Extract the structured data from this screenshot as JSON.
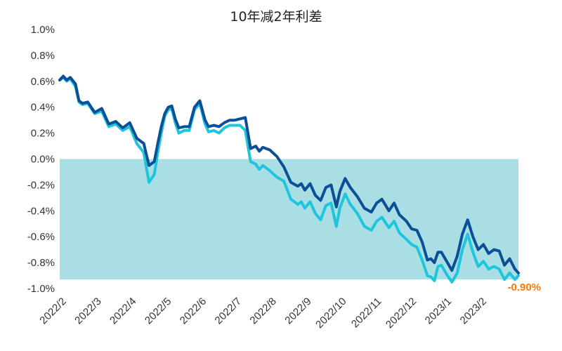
{
  "colors": {
    "series_10y_2y": "#0b4f97",
    "series_light": "#1fc5dc",
    "negative_band": "#a9dfe4",
    "end_label": "#ff7a00"
  },
  "chart_data": {
    "type": "line",
    "title": "10年减2年利差",
    "xlabel": "",
    "ylabel": "",
    "ylim": [
      -1.0,
      1.0
    ],
    "yticks": [
      "1.0%",
      "0.8%",
      "0.6%",
      "0.4%",
      "0.2%",
      "0.0%",
      "-0.2%",
      "-0.4%",
      "-0.6%",
      "-0.8%",
      "-1.0%"
    ],
    "ytick_values": [
      1.0,
      0.8,
      0.6,
      0.4,
      0.2,
      0.0,
      -0.2,
      -0.4,
      -0.6,
      -0.8,
      -1.0
    ],
    "xticks": [
      "2022/2",
      "2022/3",
      "2022/4",
      "2022/5",
      "2022/6",
      "2022/7",
      "2022/8",
      "2022/9",
      "2022/10",
      "2022/11",
      "2022/12",
      "2023/1",
      "2023/2"
    ],
    "x_range": [
      0,
      13.1
    ],
    "grid": false,
    "negative_shading": true,
    "end_label": "-0.90%",
    "series": [
      {
        "color": "#0b4f97",
        "x": [
          0.0,
          0.1,
          0.2,
          0.3,
          0.45,
          0.55,
          0.65,
          0.8,
          1.0,
          1.2,
          1.4,
          1.6,
          1.8,
          2.0,
          2.2,
          2.4,
          2.55,
          2.7,
          2.8,
          2.9,
          3.0,
          3.1,
          3.2,
          3.3,
          3.4,
          3.55,
          3.7,
          3.85,
          4.0,
          4.15,
          4.25,
          4.4,
          4.55,
          4.7,
          4.85,
          5.0,
          5.15,
          5.3,
          5.45,
          5.6,
          5.7,
          5.8,
          5.9,
          6.0,
          6.2,
          6.4,
          6.6,
          6.8,
          6.9,
          7.0,
          7.15,
          7.3,
          7.45,
          7.6,
          7.75,
          7.9,
          8.0,
          8.15,
          8.3,
          8.5,
          8.7,
          8.9,
          9.05,
          9.2,
          9.4,
          9.55,
          9.7,
          9.9,
          10.05,
          10.2,
          10.35,
          10.5,
          10.6,
          10.7,
          10.8,
          10.9,
          11.05,
          11.2,
          11.35,
          11.5,
          11.65,
          11.8,
          11.95,
          12.1,
          12.25,
          12.4,
          12.55,
          12.7,
          12.85,
          13.0,
          13.1
        ],
        "values": [
          0.61,
          0.64,
          0.61,
          0.63,
          0.58,
          0.45,
          0.43,
          0.44,
          0.36,
          0.39,
          0.27,
          0.29,
          0.24,
          0.28,
          0.16,
          0.12,
          -0.05,
          -0.02,
          0.12,
          0.25,
          0.35,
          0.4,
          0.41,
          0.31,
          0.24,
          0.25,
          0.25,
          0.4,
          0.45,
          0.3,
          0.25,
          0.26,
          0.25,
          0.28,
          0.3,
          0.3,
          0.31,
          0.32,
          0.08,
          0.1,
          0.06,
          0.09,
          0.08,
          0.07,
          0.02,
          -0.06,
          -0.18,
          -0.21,
          -0.19,
          -0.24,
          -0.19,
          -0.28,
          -0.32,
          -0.22,
          -0.2,
          -0.37,
          -0.25,
          -0.15,
          -0.22,
          -0.29,
          -0.38,
          -0.41,
          -0.34,
          -0.31,
          -0.4,
          -0.34,
          -0.43,
          -0.48,
          -0.54,
          -0.55,
          -0.64,
          -0.78,
          -0.77,
          -0.8,
          -0.72,
          -0.72,
          -0.79,
          -0.86,
          -0.75,
          -0.58,
          -0.47,
          -0.6,
          -0.7,
          -0.66,
          -0.73,
          -0.7,
          -0.71,
          -0.82,
          -0.77,
          -0.85,
          -0.88
        ]
      },
      {
        "color": "#1fc5dc",
        "x": [
          0.0,
          0.1,
          0.2,
          0.3,
          0.45,
          0.55,
          0.65,
          0.8,
          1.0,
          1.2,
          1.4,
          1.6,
          1.8,
          2.0,
          2.2,
          2.4,
          2.55,
          2.7,
          2.8,
          2.9,
          3.0,
          3.1,
          3.2,
          3.3,
          3.4,
          3.55,
          3.7,
          3.85,
          4.0,
          4.15,
          4.25,
          4.4,
          4.55,
          4.7,
          4.85,
          5.0,
          5.15,
          5.3,
          5.45,
          5.6,
          5.7,
          5.8,
          5.9,
          6.0,
          6.2,
          6.4,
          6.6,
          6.8,
          6.9,
          7.0,
          7.15,
          7.3,
          7.45,
          7.6,
          7.75,
          7.9,
          8.0,
          8.15,
          8.3,
          8.5,
          8.7,
          8.9,
          9.05,
          9.2,
          9.4,
          9.55,
          9.7,
          9.9,
          10.05,
          10.2,
          10.35,
          10.5,
          10.6,
          10.7,
          10.8,
          10.9,
          11.05,
          11.2,
          11.35,
          11.5,
          11.65,
          11.8,
          11.95,
          12.1,
          12.25,
          12.4,
          12.55,
          12.7,
          12.85,
          13.0,
          13.1
        ],
        "values": [
          0.61,
          0.63,
          0.6,
          0.62,
          0.56,
          0.44,
          0.42,
          0.43,
          0.35,
          0.37,
          0.25,
          0.27,
          0.22,
          0.25,
          0.12,
          0.05,
          -0.18,
          -0.12,
          0.05,
          0.2,
          0.33,
          0.38,
          0.39,
          0.28,
          0.2,
          0.22,
          0.22,
          0.38,
          0.43,
          0.27,
          0.21,
          0.22,
          0.2,
          0.24,
          0.26,
          0.26,
          0.26,
          0.22,
          -0.02,
          -0.04,
          -0.08,
          -0.05,
          -0.07,
          -0.09,
          -0.14,
          -0.17,
          -0.31,
          -0.35,
          -0.33,
          -0.38,
          -0.33,
          -0.42,
          -0.47,
          -0.36,
          -0.34,
          -0.52,
          -0.38,
          -0.27,
          -0.35,
          -0.42,
          -0.52,
          -0.55,
          -0.48,
          -0.45,
          -0.53,
          -0.48,
          -0.57,
          -0.62,
          -0.66,
          -0.68,
          -0.78,
          -0.9,
          -0.91,
          -0.94,
          -0.83,
          -0.82,
          -0.89,
          -0.95,
          -0.88,
          -0.7,
          -0.58,
          -0.72,
          -0.83,
          -0.79,
          -0.85,
          -0.83,
          -0.85,
          -0.93,
          -0.88,
          -0.93,
          -0.9
        ]
      }
    ]
  }
}
